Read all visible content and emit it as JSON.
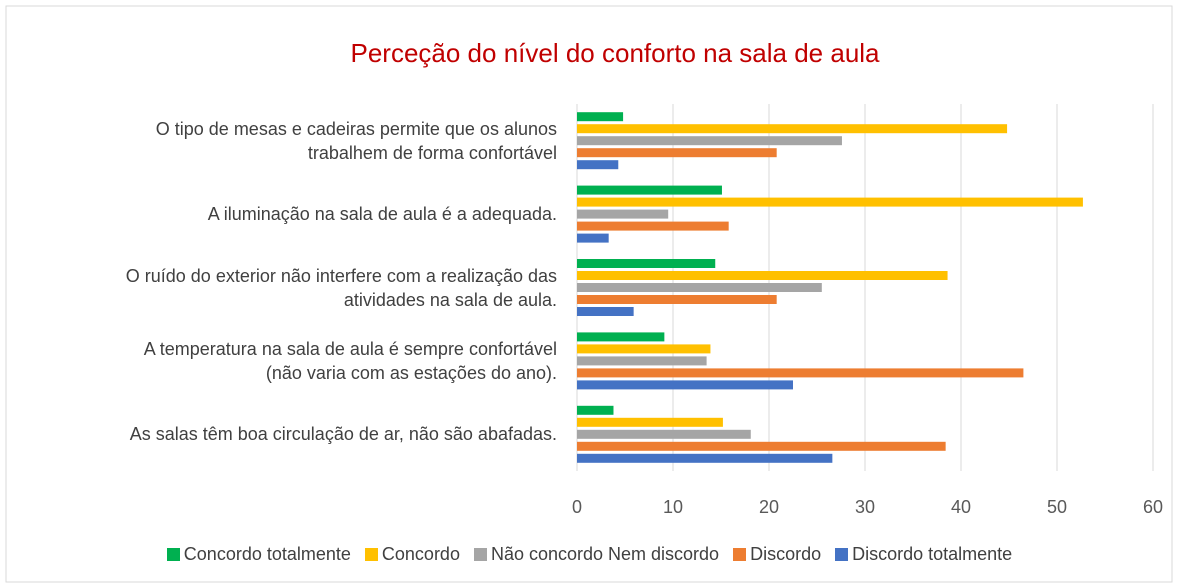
{
  "chart_data": {
    "type": "hbar",
    "title": "Perceção do nível do conforto na sala de aula",
    "categories": [
      "O tipo de mesas e cadeiras permite que os alunos\ntrabalhem de forma confortável",
      "A iluminação na sala de aula é a adequada.",
      "O ruído do exterior não interfere com a realização das\natividades na sala de aula.",
      "A temperatura na sala de aula é sempre confortável\n(não varia com as estações do ano).",
      "As salas têm boa circulação de ar, não são abafadas."
    ],
    "series": [
      {
        "name": "Concordo totalmente",
        "color": "#00b050",
        "values": [
          4.8,
          15.1,
          14.4,
          9.1,
          3.8
        ]
      },
      {
        "name": "Concordo",
        "color": "#ffc000",
        "values": [
          44.8,
          52.7,
          38.6,
          13.9,
          15.2
        ]
      },
      {
        "name": "Não concordo Nem discordo",
        "color": "#a5a5a5",
        "values": [
          27.6,
          9.5,
          25.5,
          13.5,
          18.1
        ]
      },
      {
        "name": "Discordo",
        "color": "#ed7d31",
        "values": [
          20.8,
          15.8,
          20.8,
          46.5,
          38.4
        ]
      },
      {
        "name": "Discordo totalmente",
        "color": "#4472c4",
        "values": [
          4.3,
          3.3,
          5.9,
          22.5,
          26.6
        ]
      }
    ],
    "xlim": [
      0,
      60
    ],
    "xticks": [
      0,
      10,
      20,
      30,
      40,
      50,
      60
    ],
    "grid": true,
    "legend": "bottom"
  }
}
